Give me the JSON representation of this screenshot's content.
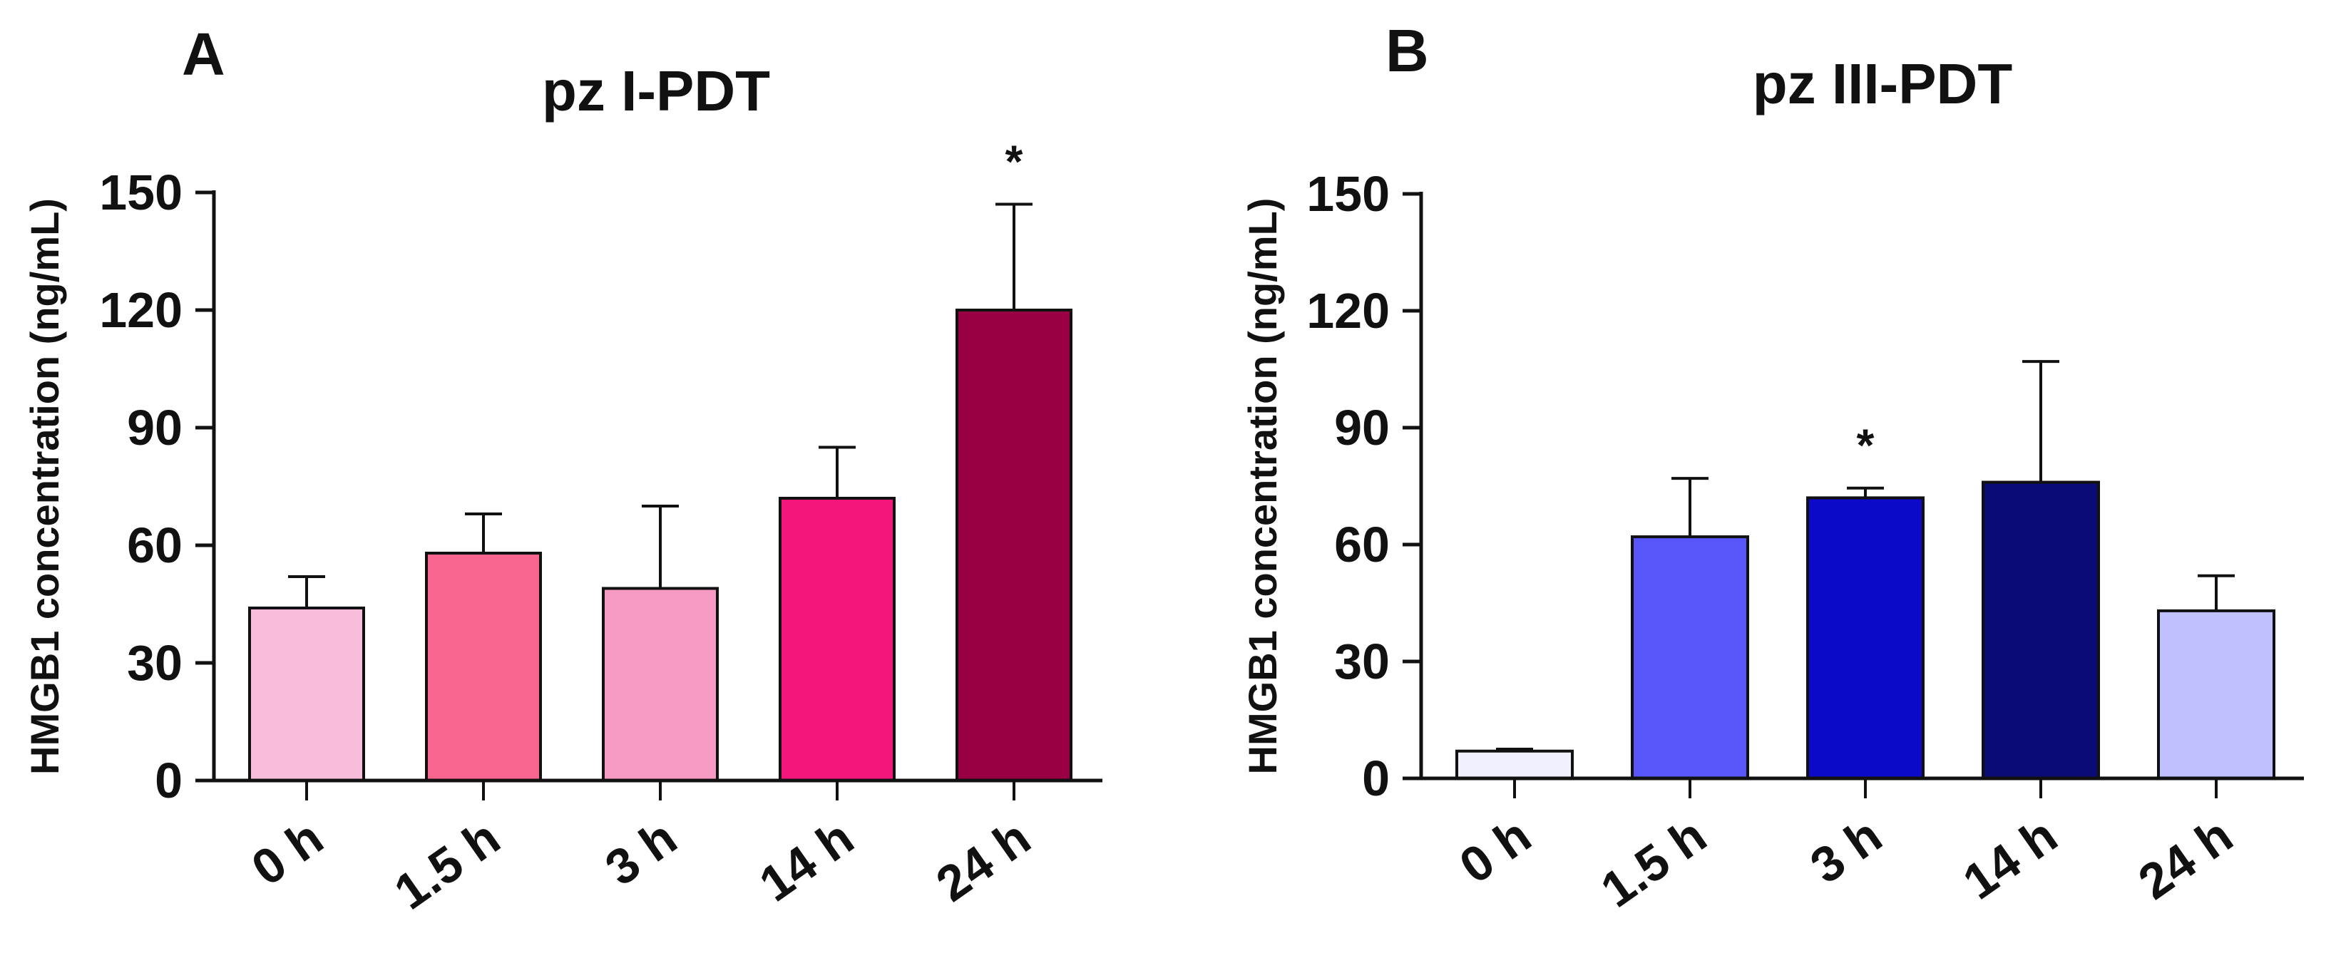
{
  "chart_data": [
    {
      "panel_label": "A",
      "type": "bar",
      "title": "pz I-PDT",
      "xlabel": "",
      "ylabel": "HMGB1 concentration (ng/mL)",
      "ylim": [
        0,
        150
      ],
      "yticks": [
        "0",
        "30",
        "60",
        "90",
        "120",
        "150"
      ],
      "categories": [
        "0 h",
        "1.5 h",
        "3 h",
        "14 h",
        "24 h"
      ],
      "values": [
        44,
        58,
        49,
        72,
        120
      ],
      "errors": [
        8,
        10,
        21,
        13,
        27
      ],
      "colors": [
        "#F9BDDC",
        "#F8658F",
        "#F59AC3",
        "#F4177B",
        "#990044"
      ],
      "annotations": [
        "",
        "",
        "",
        "",
        "*"
      ]
    },
    {
      "panel_label": "B",
      "type": "bar",
      "title": "pz III-PDT",
      "xlabel": "",
      "ylabel": "HMGB1 concentration (ng/mL)",
      "ylim": [
        0,
        150
      ],
      "yticks": [
        "0",
        "30",
        "60",
        "90",
        "120",
        "150"
      ],
      "categories": [
        "0 h",
        "1.5 h",
        "3 h",
        "14 h",
        "24 h"
      ],
      "values": [
        7,
        62,
        72,
        76,
        43
      ],
      "errors": [
        0.5,
        15,
        2.5,
        31,
        9
      ],
      "colors": [
        "#F0F0FF",
        "#5656F9",
        "#0A0AC8",
        "#0B0B77",
        "#C0C0FE"
      ],
      "annotations": [
        "",
        "",
        "*",
        "",
        ""
      ]
    }
  ]
}
